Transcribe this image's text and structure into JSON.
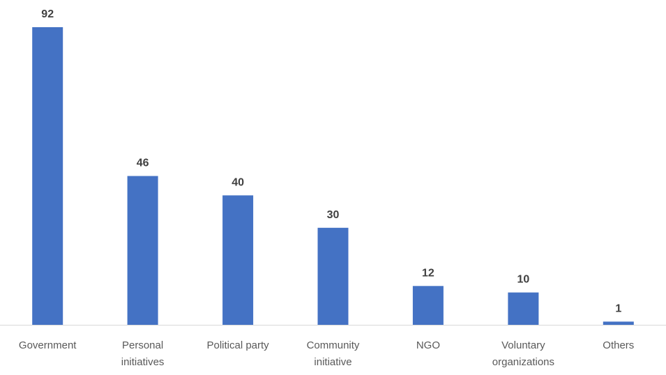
{
  "chart_data": {
    "type": "bar",
    "categories": [
      [
        "Government"
      ],
      [
        "Personal",
        "initiatives"
      ],
      [
        "Political party"
      ],
      [
        "Community",
        "initiative"
      ],
      [
        "NGO"
      ],
      [
        "Voluntary",
        "organizations"
      ],
      [
        "Others"
      ]
    ],
    "values": [
      92,
      46,
      40,
      30,
      12,
      10,
      1
    ],
    "ylim": [
      0,
      92
    ],
    "grid": false,
    "legend": "none",
    "data_labels": true,
    "colors": {
      "bar": "#4472C4",
      "axis": "#D9D9D9",
      "value_label": "#404040",
      "category_label": "#595959"
    }
  }
}
